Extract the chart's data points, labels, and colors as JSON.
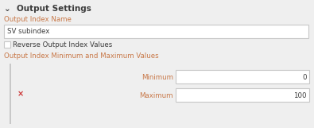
{
  "bg_color": "#efefef",
  "white": "#ffffff",
  "border_color": "#c8c8c8",
  "text_dark": "#3c3c3c",
  "text_orange": "#c87848",
  "red_x": "#cc3333",
  "left_bar_color": "#c8c8c8",
  "title_text": "⌄  Output Settings",
  "label1": "Output Index Name",
  "input1_text": "SV subindex",
  "checkbox_label": "Reverse Output Index Values",
  "label2": "Output Index Minimum and Maximum Values",
  "min_label": "Minimum",
  "max_label": "Maximum",
  "min_value": "0",
  "max_value": "100",
  "title_fontsize": 7.5,
  "label_fontsize": 6.2,
  "input_fontsize": 6.2,
  "figsize": [
    3.95,
    1.61
  ],
  "dpi": 100
}
